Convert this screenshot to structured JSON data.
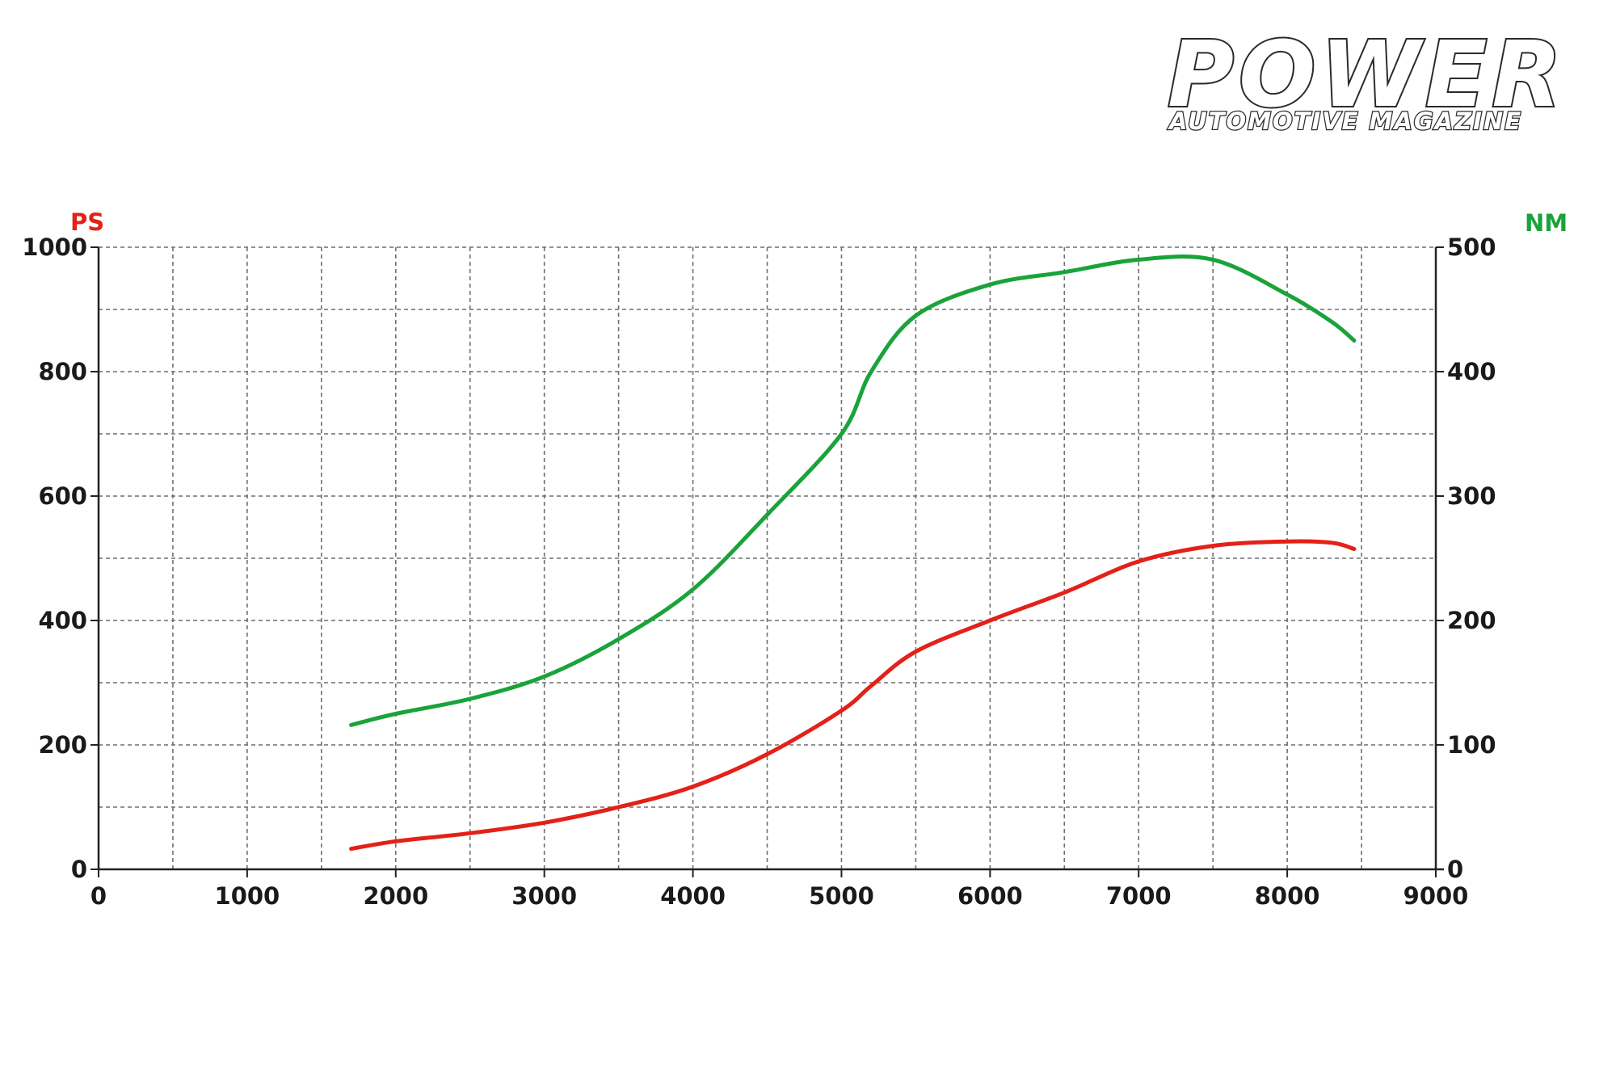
{
  "logo": {
    "title": "POWER",
    "subtitle": "AUTOMOTIVE MAGAZINE"
  },
  "chart_data": {
    "type": "line",
    "x": [
      1700,
      2000,
      2500,
      3000,
      3500,
      4000,
      4500,
      5000,
      5200,
      5500,
      6000,
      6500,
      7000,
      7500,
      8000,
      8300,
      8450
    ],
    "xlim": [
      0,
      9000
    ],
    "x_ticks": [
      "0",
      "1000",
      "2000",
      "3000",
      "4000",
      "5000",
      "6000",
      "7000",
      "8000",
      "9000"
    ],
    "xlabel": "",
    "left_axis": {
      "label": "PS",
      "color": "#e32119",
      "ylim": [
        0,
        1000
      ],
      "ticks": [
        "0",
        "200",
        "400",
        "600",
        "800",
        "1000"
      ]
    },
    "right_axis": {
      "label": "NM",
      "color": "#1aa33a",
      "ylim": [
        0,
        500
      ],
      "ticks": [
        "0",
        "100",
        "200",
        "300",
        "400",
        "500"
      ]
    },
    "series": [
      {
        "axis": "left",
        "color": "#e32119",
        "values": [
          33,
          45,
          58,
          75,
          100,
          133,
          185,
          255,
          295,
          350,
          400,
          445,
          495,
          520,
          527,
          525,
          515
        ]
      },
      {
        "axis": "right",
        "color": "#1aa33a",
        "values": [
          116,
          125,
          137,
          155,
          185,
          225,
          285,
          350,
          400,
          445,
          470,
          480,
          490,
          490,
          462,
          440,
          425
        ]
      }
    ],
    "grid": true,
    "grid_style": "dashed",
    "legend": "none"
  }
}
